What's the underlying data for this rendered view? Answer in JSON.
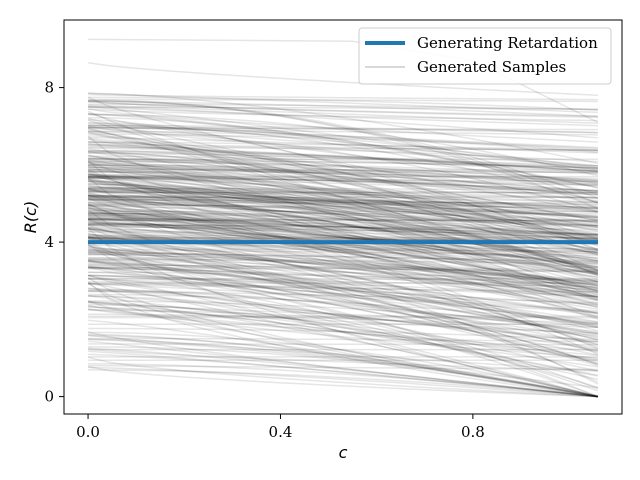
{
  "chart_data": {
    "type": "line",
    "xlabel": "c",
    "ylabel": "R(c)",
    "xlim": [
      -0.05,
      1.11
    ],
    "ylim": [
      -0.45,
      9.75
    ],
    "x_ticks": [
      0.0,
      0.4,
      0.8
    ],
    "x_tick_labels": [
      "0.0",
      "0.4",
      "0.8"
    ],
    "y_ticks": [
      0,
      4,
      8
    ],
    "y_tick_labels": [
      "0",
      "4",
      "8"
    ],
    "x_domain": [
      0.0,
      1.06
    ],
    "grid": false,
    "legend_position": "top-right",
    "series": [
      {
        "name": "Generating Retardation",
        "color": "#1f77b4",
        "x": [
          0.0,
          1.06
        ],
        "y": [
          4.0,
          4.0
        ]
      },
      {
        "name": "Generated Samples",
        "color": "#000000",
        "opacity": 0.1,
        "count": 400,
        "start_range": [
          0.4,
          9.25
        ],
        "end_range": [
          0.0,
          7.8
        ],
        "typical_start": 4.6,
        "typical_end": 3.0
      }
    ],
    "legend": [
      {
        "label": "Generating Retardation",
        "color": "#1f77b4",
        "style": "thick"
      },
      {
        "label": "Generated Samples",
        "color": "#cccccc",
        "style": "thin"
      }
    ]
  }
}
